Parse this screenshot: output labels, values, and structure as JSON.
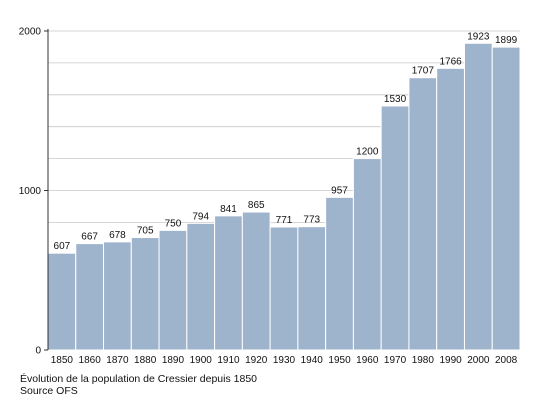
{
  "chart_data": {
    "type": "bar",
    "categories": [
      "1850",
      "1860",
      "1870",
      "1880",
      "1890",
      "1900",
      "1910",
      "1920",
      "1930",
      "1940",
      "1950",
      "1960",
      "1970",
      "1980",
      "1990",
      "2000",
      "2008"
    ],
    "values": [
      607,
      667,
      678,
      705,
      750,
      794,
      841,
      865,
      771,
      773,
      957,
      1200,
      1530,
      1707,
      1766,
      1923,
      1899
    ],
    "title": "",
    "xlabel": "",
    "ylabel": "",
    "ylim": [
      0,
      2000
    ],
    "yticks": [
      0,
      1000,
      2000
    ],
    "grid": true,
    "bar_color": "#9eb3cc",
    "data_labels": true
  },
  "caption": {
    "line1": "Évolution de la population de Cressier depuis 1850",
    "line2": "Source OFS"
  }
}
